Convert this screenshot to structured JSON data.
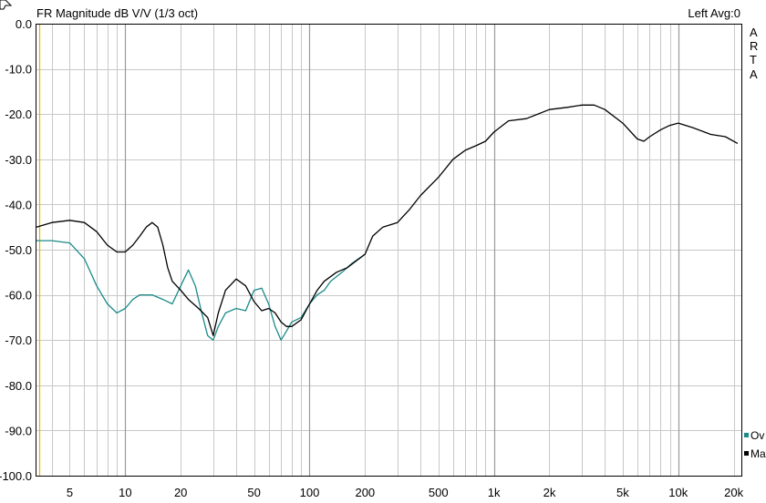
{
  "header": {
    "title": "FR Magnitude dB V/V (1/3 oct)",
    "status": "Left  Avg:0"
  },
  "brand": [
    "A",
    "R",
    "T",
    "A"
  ],
  "colors": {
    "background": "#ffffff",
    "grid_minor": "#c8c8c8",
    "grid_major": "#9a9a9a",
    "frame": "#000000",
    "cursor": "#e8b400"
  },
  "chart_data": {
    "type": "line",
    "x_scale": "log",
    "xlim": [
      3.3,
      22000
    ],
    "ylim": [
      -100,
      0
    ],
    "x_ticks": [
      {
        "value": 5,
        "label": "5"
      },
      {
        "value": 10,
        "label": "10"
      },
      {
        "value": 20,
        "label": "20"
      },
      {
        "value": 50,
        "label": "50"
      },
      {
        "value": 100,
        "label": "100"
      },
      {
        "value": 200,
        "label": "200"
      },
      {
        "value": 500,
        "label": "500"
      },
      {
        "value": 1000,
        "label": "1k"
      },
      {
        "value": 2000,
        "label": "2k"
      },
      {
        "value": 5000,
        "label": "5k"
      },
      {
        "value": 10000,
        "label": "10k"
      },
      {
        "value": 20000,
        "label": "20k"
      }
    ],
    "y_ticks": [
      {
        "value": 0,
        "label": "0.0"
      },
      {
        "value": -10,
        "label": "-10.0"
      },
      {
        "value": -20,
        "label": "-20.0"
      },
      {
        "value": -30,
        "label": "-30.0"
      },
      {
        "value": -40,
        "label": "-40.0"
      },
      {
        "value": -50,
        "label": "-50.0"
      },
      {
        "value": -60,
        "label": "-60.0"
      },
      {
        "value": -70,
        "label": "-70.0"
      },
      {
        "value": -80,
        "label": "-80.0"
      },
      {
        "value": -90,
        "label": "-90.0"
      },
      {
        "value": -100,
        "label": "-100.0"
      }
    ],
    "grid": true,
    "cursor_x": 3.4,
    "legend_position": "bottom-right",
    "series": [
      {
        "name": "Ov",
        "color": "#1a8a8a",
        "x": [
          3.3,
          4,
          5,
          6,
          7,
          8,
          9,
          10,
          11,
          12,
          14,
          16,
          18,
          20,
          22,
          24,
          26,
          28,
          30,
          32,
          35,
          40,
          45,
          50,
          55,
          60,
          65,
          70,
          75,
          80,
          90,
          100,
          110,
          120,
          130,
          150,
          170,
          200
        ],
        "y": [
          -48,
          -48,
          -48.5,
          -52,
          -58,
          -62,
          -64,
          -63,
          -61,
          -60,
          -60,
          -61,
          -62,
          -58,
          -54.5,
          -58,
          -64,
          -69,
          -70,
          -67,
          -64,
          -63,
          -63.5,
          -59,
          -58.5,
          -62,
          -67,
          -70,
          -68,
          -66,
          -65,
          -62,
          -60,
          -59,
          -57,
          -55,
          -53,
          -51
        ]
      },
      {
        "name": "Ma",
        "color": "#000000",
        "x": [
          3.3,
          4,
          5,
          6,
          7,
          8,
          9,
          10,
          11,
          12,
          13,
          14,
          15,
          16,
          17,
          18,
          20,
          22,
          25,
          28,
          30,
          32,
          35,
          40,
          45,
          50,
          55,
          60,
          65,
          70,
          75,
          80,
          90,
          100,
          110,
          120,
          140,
          160,
          200,
          220,
          250,
          300,
          350,
          400,
          500,
          600,
          700,
          800,
          900,
          1000,
          1200,
          1500,
          2000,
          2500,
          3000,
          3500,
          4000,
          5000,
          6000,
          6500,
          7000,
          8000,
          9000,
          10000,
          12000,
          15000,
          18000,
          21000
        ],
        "y": [
          -45,
          -44,
          -43.5,
          -44,
          -46,
          -49,
          -50.5,
          -50.5,
          -49,
          -47,
          -45,
          -44,
          -45,
          -49,
          -54,
          -57,
          -59,
          -61,
          -63,
          -65,
          -69,
          -64,
          -59,
          -56.5,
          -58,
          -61.5,
          -63.5,
          -63,
          -64,
          -66,
          -67,
          -67,
          -65.5,
          -62,
          -59,
          -57,
          -55,
          -54,
          -51,
          -47,
          -45,
          -44,
          -41,
          -38,
          -34,
          -30,
          -28,
          -27,
          -26,
          -24,
          -21.5,
          -21,
          -19,
          -18.5,
          -18,
          -18,
          -19,
          -22,
          -25.5,
          -26,
          -25,
          -23.5,
          -22.5,
          -22,
          -23,
          -24.5,
          -25,
          -26.5
        ]
      }
    ]
  }
}
